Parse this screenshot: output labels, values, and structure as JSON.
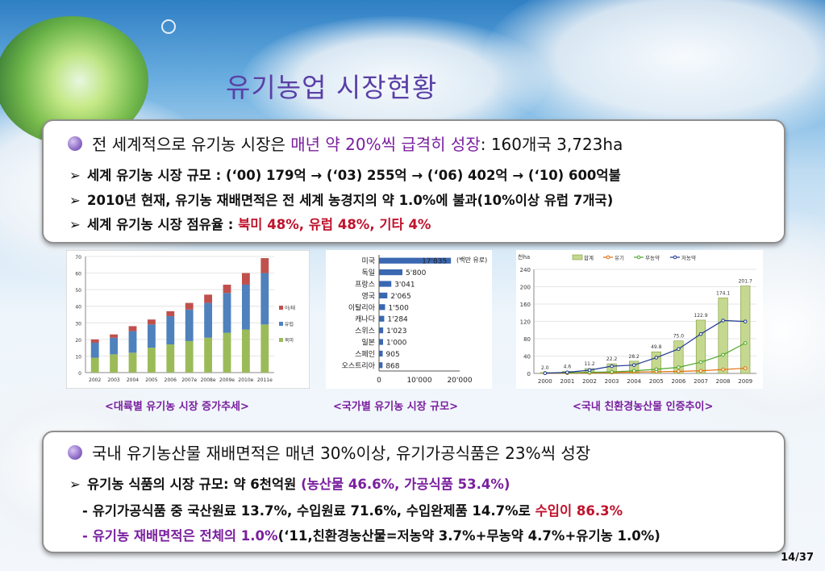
{
  "title": "유기농업 시장현황",
  "top": {
    "heading_pre": "전 세계적으로 유기농 시장은 ",
    "heading_highlight": "매년 약 20%씩 급격히 성장",
    "heading_post": ": 160개국 3,723ha",
    "bullet1": "세계 유기농 시장 규모 : (‘00) 179억 → (‘03) 255억 → (‘06) 402억 → (‘10) 600억불",
    "bullet2": "2010년 현재, 유기농 재배면적은 전 세계 농경지의 약 1.0%에 불과(10%이상 유럽 7개국)",
    "bullet3_pre": "세계 유기농 시장 점유율 : ",
    "bullet3_highlight": "북미 48%, 유럽 48%, 기타 4%"
  },
  "captions": {
    "c1": "<대륙별 유기농 시장 증가추세>",
    "c2": "<국가별 유기농 시장 규모>",
    "c3": "<국내 친환경농산물 인증추이>"
  },
  "bottom": {
    "heading": "국내 유기농산물 재배면적은 매년 30%이상, 유기가공식품은 23%씩 성장",
    "bullet1_pre": "유기농 식품의 시장 규모: 약 6천억원 ",
    "bullet1_highlight": "(농산물 46.6%, 가공식품 53.4%)",
    "line2_pre": "- 유기가공식품 중 국산원료 13.7%, 수입원료 71.6%, 수입완제품 14.7%로 ",
    "line2_highlight": "수입이 86.3%",
    "line3_dash": "- ",
    "line3_highlight": "유기농 재배면적은 전체의 1.0%",
    "line3_post": "(‘11,친환경농산물=저농약 3.7%+무농약 4.7%+유기농 1.0%)"
  },
  "page_number": "14/37",
  "colors": {
    "title": "#5a3fa6",
    "highlight": "#7a1f9e",
    "red": "#c0132d"
  },
  "chart_data": [
    {
      "type": "bar",
      "stacked": true,
      "categories": [
        "2002",
        "2003",
        "2004",
        "2005",
        "2006",
        "2007e",
        "2008e",
        "2009e",
        "2010e",
        "2011e"
      ],
      "series": [
        {
          "name": "북미",
          "values": [
            9,
            11,
            12,
            15,
            17,
            19,
            21,
            24,
            26,
            29
          ]
        },
        {
          "name": "유럽",
          "values": [
            9,
            10,
            13,
            14,
            17,
            19,
            21,
            24,
            27,
            31
          ]
        },
        {
          "name": "아/태",
          "values": [
            2,
            2,
            3,
            3,
            3,
            4,
            5,
            5,
            7,
            9
          ]
        }
      ],
      "ylim": [
        0,
        70
      ],
      "yticks": [
        0,
        10,
        20,
        30,
        40,
        50,
        60,
        70
      ],
      "colors": [
        "#9bbb59",
        "#4f81bd",
        "#c0504d"
      ],
      "legend": "right"
    },
    {
      "type": "bar",
      "orientation": "horizontal",
      "categories": [
        "미국",
        "독일",
        "프랑스",
        "영국",
        "이탈리아",
        "캐나다",
        "스위스",
        "일본",
        "스페인",
        "오스트리아"
      ],
      "values": [
        17835,
        5800,
        3041,
        2065,
        1500,
        1284,
        1023,
        1000,
        905,
        868
      ],
      "value_labels": [
        "17'835",
        "5'800",
        "3'041",
        "2'065",
        "1'500",
        "1'284",
        "1'023",
        "1'000",
        "905",
        "868"
      ],
      "xticks": [
        "0",
        "10'000",
        "20'000"
      ],
      "xlim": [
        0,
        20000
      ],
      "unit": "(백만 유로)"
    },
    {
      "type": "bar",
      "combo": "bar+line",
      "unit": "천ha",
      "categories": [
        "2000",
        "2001",
        "2002",
        "2003",
        "2004",
        "2005",
        "2006",
        "2007",
        "2008",
        "2009"
      ],
      "ylim": [
        0,
        240
      ],
      "yticks": [
        0,
        40,
        80,
        120,
        160,
        200,
        240
      ],
      "series": [
        {
          "name": "합계",
          "kind": "bar",
          "values": [
            2.0,
            4.6,
            11.2,
            22.2,
            28.2,
            49.8,
            75.0,
            122.9,
            174.1,
            201.7
          ],
          "labels": [
            "2.0",
            "4.6",
            "11.2",
            "22.2",
            "28.2",
            "49.8",
            "75.0",
            "122.9",
            "174.1",
            "201.7"
          ]
        },
        {
          "name": "유기",
          "kind": "line",
          "values": [
            0.5,
            0.6,
            1.2,
            2.0,
            3.0,
            3.8,
            4.7,
            6.0,
            9.0,
            12.0
          ]
        },
        {
          "name": "무농약",
          "kind": "line",
          "values": [
            1.0,
            1.5,
            2.5,
            3.5,
            6.0,
            9.5,
            14.0,
            26.0,
            43.0,
            70.0
          ]
        },
        {
          "name": "저농약",
          "kind": "line",
          "values": [
            0.5,
            2.5,
            7.5,
            16.7,
            19.2,
            36.5,
            56.3,
            90.9,
            122.1,
            119.7
          ]
        }
      ],
      "colors": {
        "합계": "#9bbb59",
        "유기": "#e36c09",
        "무농약": "#4ea72e",
        "저농약": "#1f3a93"
      }
    }
  ]
}
